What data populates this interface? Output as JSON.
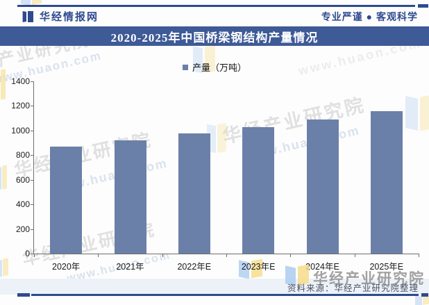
{
  "header": {
    "brand": "华经情报网",
    "slogan": "专业严谨 ● 客观科学"
  },
  "title": "2020-2025年中国桥梁钢结构产量情况",
  "chart_data": {
    "type": "bar",
    "title": "2020-2025年中国桥梁钢结构产量情况",
    "categories": [
      "2020年",
      "2021年",
      "2022年E",
      "2023年E",
      "2024年E",
      "2025年E"
    ],
    "values": [
      870,
      920,
      975,
      1030,
      1090,
      1155
    ],
    "series_name": "产量（万吨）",
    "xlabel": "",
    "ylabel": "产量（万吨）",
    "ylim": [
      0,
      1400
    ],
    "yticks": [
      0,
      200,
      400,
      600,
      800,
      1000,
      1200,
      1400
    ],
    "grid": false,
    "legend_position": "top"
  },
  "legend": {
    "label": "产量（万吨）"
  },
  "footer": {
    "source": "资料来源：华经产业研究院整理"
  },
  "watermarks": {
    "brand_large": "华经产业研究院",
    "diagonal": "华经产业研究院",
    "url": "www.huaon.com"
  },
  "colors": {
    "accent": "#2e4a8f",
    "title_band": "#3e5a97",
    "bar": "#6b80a8",
    "footer_strip": "#edf2f8"
  }
}
